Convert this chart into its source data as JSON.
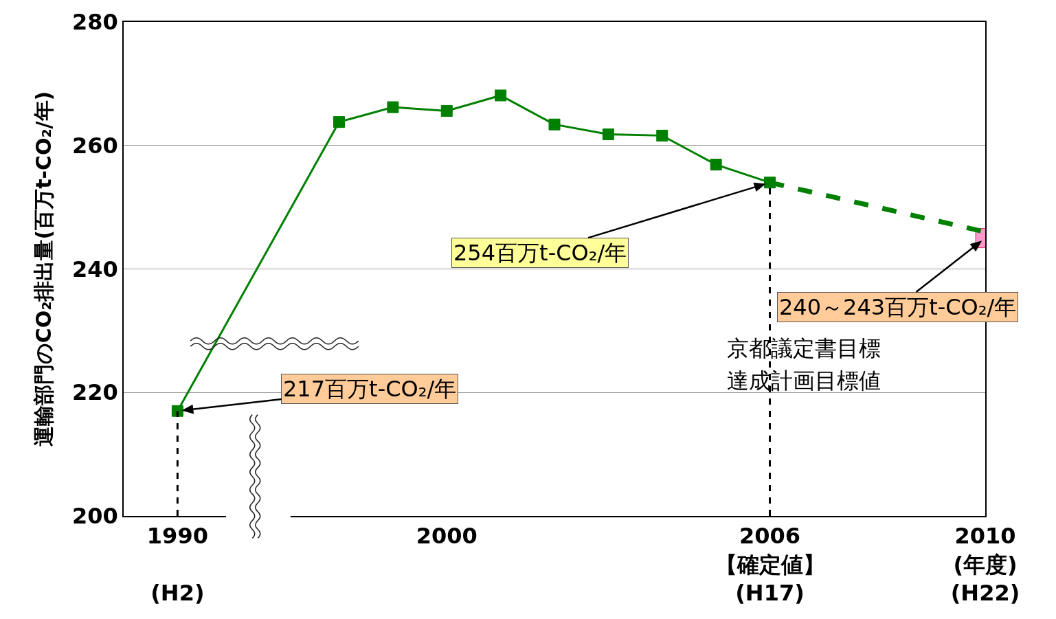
{
  "chart_data": {
    "type": "line",
    "ylabel": "運輸部門のCO₂排出量(百万t-CO₂/年)",
    "categories": [
      "1990\n\n(H2)",
      null,
      null,
      null,
      null,
      "2000",
      null,
      null,
      null,
      null,
      null,
      "2006\n【確定値】\n(H17)",
      null,
      null,
      null,
      "2010\n(年度)\n(H22)"
    ],
    "series": [
      {
        "color": "#008000",
        "marker": "square",
        "line_style": "solid",
        "values": [
          217,
          null,
          null,
          263.8,
          266.2,
          265.6,
          268.1,
          263.4,
          261.8,
          261.6,
          256.9,
          254,
          null,
          null,
          null,
          null
        ]
      },
      {
        "color": "#ff99cc",
        "marker": "square",
        "values": [
          null,
          null,
          null,
          null,
          null,
          null,
          null,
          null,
          null,
          null,
          null,
          null,
          null,
          null,
          null,
          245
        ]
      },
      {
        "color": "#008000",
        "line_style": "dashed",
        "values": [
          null,
          null,
          null,
          null,
          null,
          null,
          null,
          null,
          null,
          null,
          null,
          254,
          null,
          null,
          null,
          246
        ]
      }
    ],
    "ylim": [
      200,
      280
    ],
    "yticks": [
      200,
      220,
      240,
      260,
      280
    ],
    "grid": "y",
    "ref_lines": [
      {
        "axis": "x",
        "value": "1990\n\n(H2)",
        "line_style": "dashed",
        "color": "#000000"
      },
      {
        "axis": "x",
        "value": "2006\n【確定値】\n(H17)",
        "line_style": "dashed",
        "color": "#000000"
      }
    ],
    "annotations": [
      {
        "text": "217百万t-CO₂/年",
        "x": "1990\n\n(H2)",
        "y": 217
      },
      {
        "text": "254百万t-CO₂/年",
        "x": "2006\n【確定値】\n(H17)",
        "y": 254
      },
      {
        "text": "240～243百万t-CO₂/年",
        "x": "2010\n(年度)\n(H22)",
        "y": 245
      },
      "京都議定書目標",
      "達成計画目標値"
    ]
  }
}
